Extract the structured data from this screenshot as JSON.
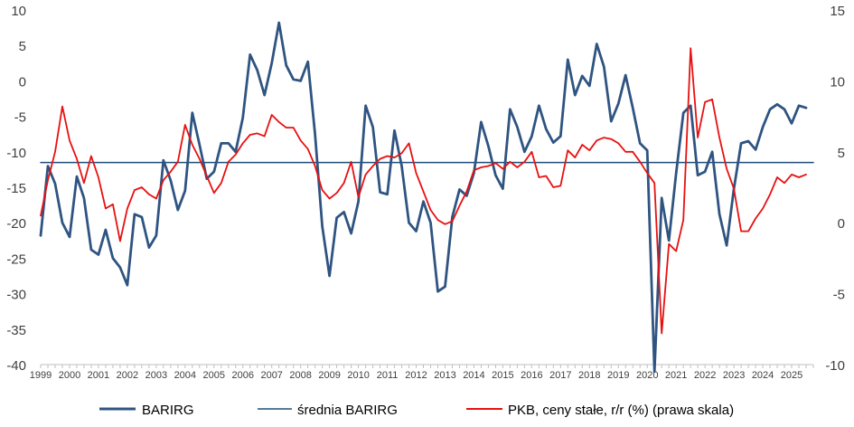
{
  "chart_data": {
    "type": "line",
    "x_tick_labels": [
      "1999",
      "2000",
      "2001",
      "2002",
      "2003",
      "2004",
      "2005",
      "2006",
      "2007",
      "2008",
      "2009",
      "2010",
      "2011",
      "2012",
      "2013",
      "2014",
      "2015",
      "2016",
      "2017",
      "2018",
      "2019",
      "2020",
      "2021",
      "2022",
      "2023",
      "2024",
      "2025"
    ],
    "y_left_ticks": [
      10,
      5,
      0,
      -5,
      -10,
      -15,
      -20,
      -25,
      -30,
      -35,
      -40
    ],
    "y_right_ticks": [
      15,
      10,
      5,
      0,
      -5,
      -10
    ],
    "ylim_left": [
      -40,
      10
    ],
    "ylim_right": [
      -10,
      15
    ],
    "xlim": [
      1999.0,
      2025.75
    ],
    "grid": false,
    "legend_position": "bottom",
    "colors": {
      "barirg": "#2F5481",
      "srednia": "#1F4E79",
      "pkb": "#E81010"
    },
    "series": [
      {
        "name": "BARIRG",
        "axis": "left",
        "x": [
          1999.0,
          1999.25,
          1999.5,
          1999.75,
          2000.0,
          2000.25,
          2000.5,
          2000.75,
          2001.0,
          2001.25,
          2001.5,
          2001.75,
          2002.0,
          2002.25,
          2002.5,
          2002.75,
          2003.0,
          2003.25,
          2003.5,
          2003.75,
          2004.0,
          2004.25,
          2004.5,
          2004.75,
          2005.0,
          2005.25,
          2005.5,
          2005.75,
          2006.0,
          2006.25,
          2006.5,
          2006.75,
          2007.0,
          2007.25,
          2007.5,
          2007.75,
          2008.0,
          2008.25,
          2008.5,
          2008.75,
          2009.0,
          2009.25,
          2009.5,
          2009.75,
          2010.0,
          2010.25,
          2010.5,
          2010.75,
          2011.0,
          2011.25,
          2011.5,
          2011.75,
          2012.0,
          2012.25,
          2012.5,
          2012.75,
          2013.0,
          2013.25,
          2013.5,
          2013.75,
          2014.0,
          2014.25,
          2014.5,
          2014.75,
          2015.0,
          2015.25,
          2015.5,
          2015.75,
          2016.0,
          2016.25,
          2016.5,
          2016.75,
          2017.0,
          2017.25,
          2017.5,
          2017.75,
          2018.0,
          2018.25,
          2018.5,
          2018.75,
          2019.0,
          2019.25,
          2019.5,
          2019.75,
          2020.0,
          2020.25,
          2020.5,
          2020.75,
          2021.0,
          2021.25,
          2021.5,
          2021.75,
          2022.0,
          2022.25,
          2022.5,
          2022.75,
          2023.0,
          2023.25,
          2023.5,
          2023.75,
          2024.0,
          2024.25,
          2024.5,
          2024.75,
          2025.0,
          2025.25,
          2025.5
        ],
        "values": [
          -21.8,
          -12.0,
          -14.5,
          -20.0,
          -22.0,
          -13.5,
          -16.5,
          -23.8,
          -24.5,
          -21.0,
          -25.0,
          -26.3,
          -28.8,
          -18.8,
          -19.2,
          -23.5,
          -21.8,
          -11.2,
          -14.0,
          -18.2,
          -15.5,
          -4.5,
          -9.0,
          -13.8,
          -12.8,
          -8.8,
          -8.8,
          -10.0,
          -5.2,
          3.7,
          1.5,
          -2.0,
          2.5,
          8.2,
          2.2,
          0.2,
          0.0,
          2.7,
          -7.5,
          -20.5,
          -27.5,
          -19.3,
          -18.5,
          -21.5,
          -17.0,
          -3.5,
          -6.5,
          -15.7,
          -16.0,
          -7.0,
          -12.0,
          -20.0,
          -21.2,
          -17.0,
          -20.0,
          -29.7,
          -29.0,
          -19.2,
          -15.3,
          -16.2,
          -13.0,
          -5.8,
          -9.2,
          -13.3,
          -15.2,
          -4.0,
          -6.5,
          -10.0,
          -7.8,
          -3.5,
          -6.8,
          -8.7,
          -7.8,
          3.0,
          -2.0,
          0.7,
          -0.7,
          5.2,
          2.0,
          -5.7,
          -3.2,
          0.8,
          -3.8,
          -8.8,
          -9.8,
          -41.0,
          -16.5,
          -22.5,
          -13.0,
          -4.5,
          -3.5,
          -13.3,
          -12.8,
          -10.0,
          -18.8,
          -23.2,
          -15.2,
          -8.8,
          -8.5,
          -9.7,
          -6.5,
          -4.0,
          -3.3,
          -4.0,
          -6.0,
          -3.5,
          -3.8
        ]
      },
      {
        "name": "średnia BARIRG",
        "axis": "left",
        "x": [
          1999.0,
          2025.75
        ],
        "values": [
          -11.5,
          -11.5
        ]
      },
      {
        "name": "PKB, ceny stałe, r/r (%) (prawa skala)",
        "axis": "right",
        "x": [
          1999.0,
          1999.25,
          1999.5,
          1999.75,
          2000.0,
          2000.25,
          2000.5,
          2000.75,
          2001.0,
          2001.25,
          2001.5,
          2001.75,
          2002.0,
          2002.25,
          2002.5,
          2002.75,
          2003.0,
          2003.25,
          2003.5,
          2003.75,
          2004.0,
          2004.25,
          2004.5,
          2004.75,
          2005.0,
          2005.25,
          2005.5,
          2005.75,
          2006.0,
          2006.25,
          2006.5,
          2006.75,
          2007.0,
          2007.25,
          2007.5,
          2007.75,
          2008.0,
          2008.25,
          2008.5,
          2008.75,
          2009.0,
          2009.25,
          2009.5,
          2009.75,
          2010.0,
          2010.25,
          2010.5,
          2010.75,
          2011.0,
          2011.25,
          2011.5,
          2011.75,
          2012.0,
          2012.25,
          2012.5,
          2012.75,
          2013.0,
          2013.25,
          2013.5,
          2013.75,
          2014.0,
          2014.25,
          2014.5,
          2014.75,
          2015.0,
          2015.25,
          2015.5,
          2015.75,
          2016.0,
          2016.25,
          2016.5,
          2016.75,
          2017.0,
          2017.25,
          2017.5,
          2017.75,
          2018.0,
          2018.25,
          2018.5,
          2018.75,
          2019.0,
          2019.25,
          2019.5,
          2019.75,
          2020.0,
          2020.25,
          2020.5,
          2020.75,
          2021.0,
          2021.25,
          2021.5,
          2021.75,
          2022.0,
          2022.25,
          2022.5,
          2022.75,
          2023.0,
          2023.25,
          2023.5,
          2023.75,
          2024.0,
          2024.25,
          2024.5,
          2024.75,
          2025.0,
          2025.25,
          2025.5
        ],
        "values": [
          0.5,
          3.0,
          5.0,
          8.2,
          5.8,
          4.5,
          2.8,
          4.7,
          3.2,
          1.0,
          1.3,
          -1.3,
          1.0,
          2.3,
          2.5,
          2.0,
          1.7,
          3.0,
          3.6,
          4.3,
          6.9,
          5.5,
          4.5,
          3.3,
          2.1,
          2.8,
          4.3,
          4.8,
          5.6,
          6.2,
          6.3,
          6.1,
          7.6,
          7.1,
          6.7,
          6.7,
          5.8,
          5.2,
          4.0,
          2.3,
          1.7,
          2.1,
          2.8,
          4.3,
          1.8,
          3.4,
          4.0,
          4.5,
          4.7,
          4.6,
          4.9,
          5.6,
          3.5,
          2.2,
          0.9,
          0.2,
          -0.1,
          0.1,
          1.2,
          2.2,
          3.7,
          3.9,
          4.0,
          4.2,
          3.8,
          4.3,
          3.9,
          4.3,
          5.0,
          3.2,
          3.3,
          2.5,
          2.6,
          5.1,
          4.6,
          5.5,
          5.1,
          5.8,
          6.0,
          5.9,
          5.6,
          5.0,
          5.0,
          4.3,
          3.5,
          2.8,
          -7.8,
          -1.5,
          -2.0,
          0.2,
          12.3,
          6.0,
          8.5,
          8.7,
          6.0,
          3.8,
          2.4,
          -0.6,
          -0.6,
          0.3,
          1.0,
          2.0,
          3.2,
          2.8,
          3.4,
          3.2,
          3.4
        ]
      }
    ]
  }
}
